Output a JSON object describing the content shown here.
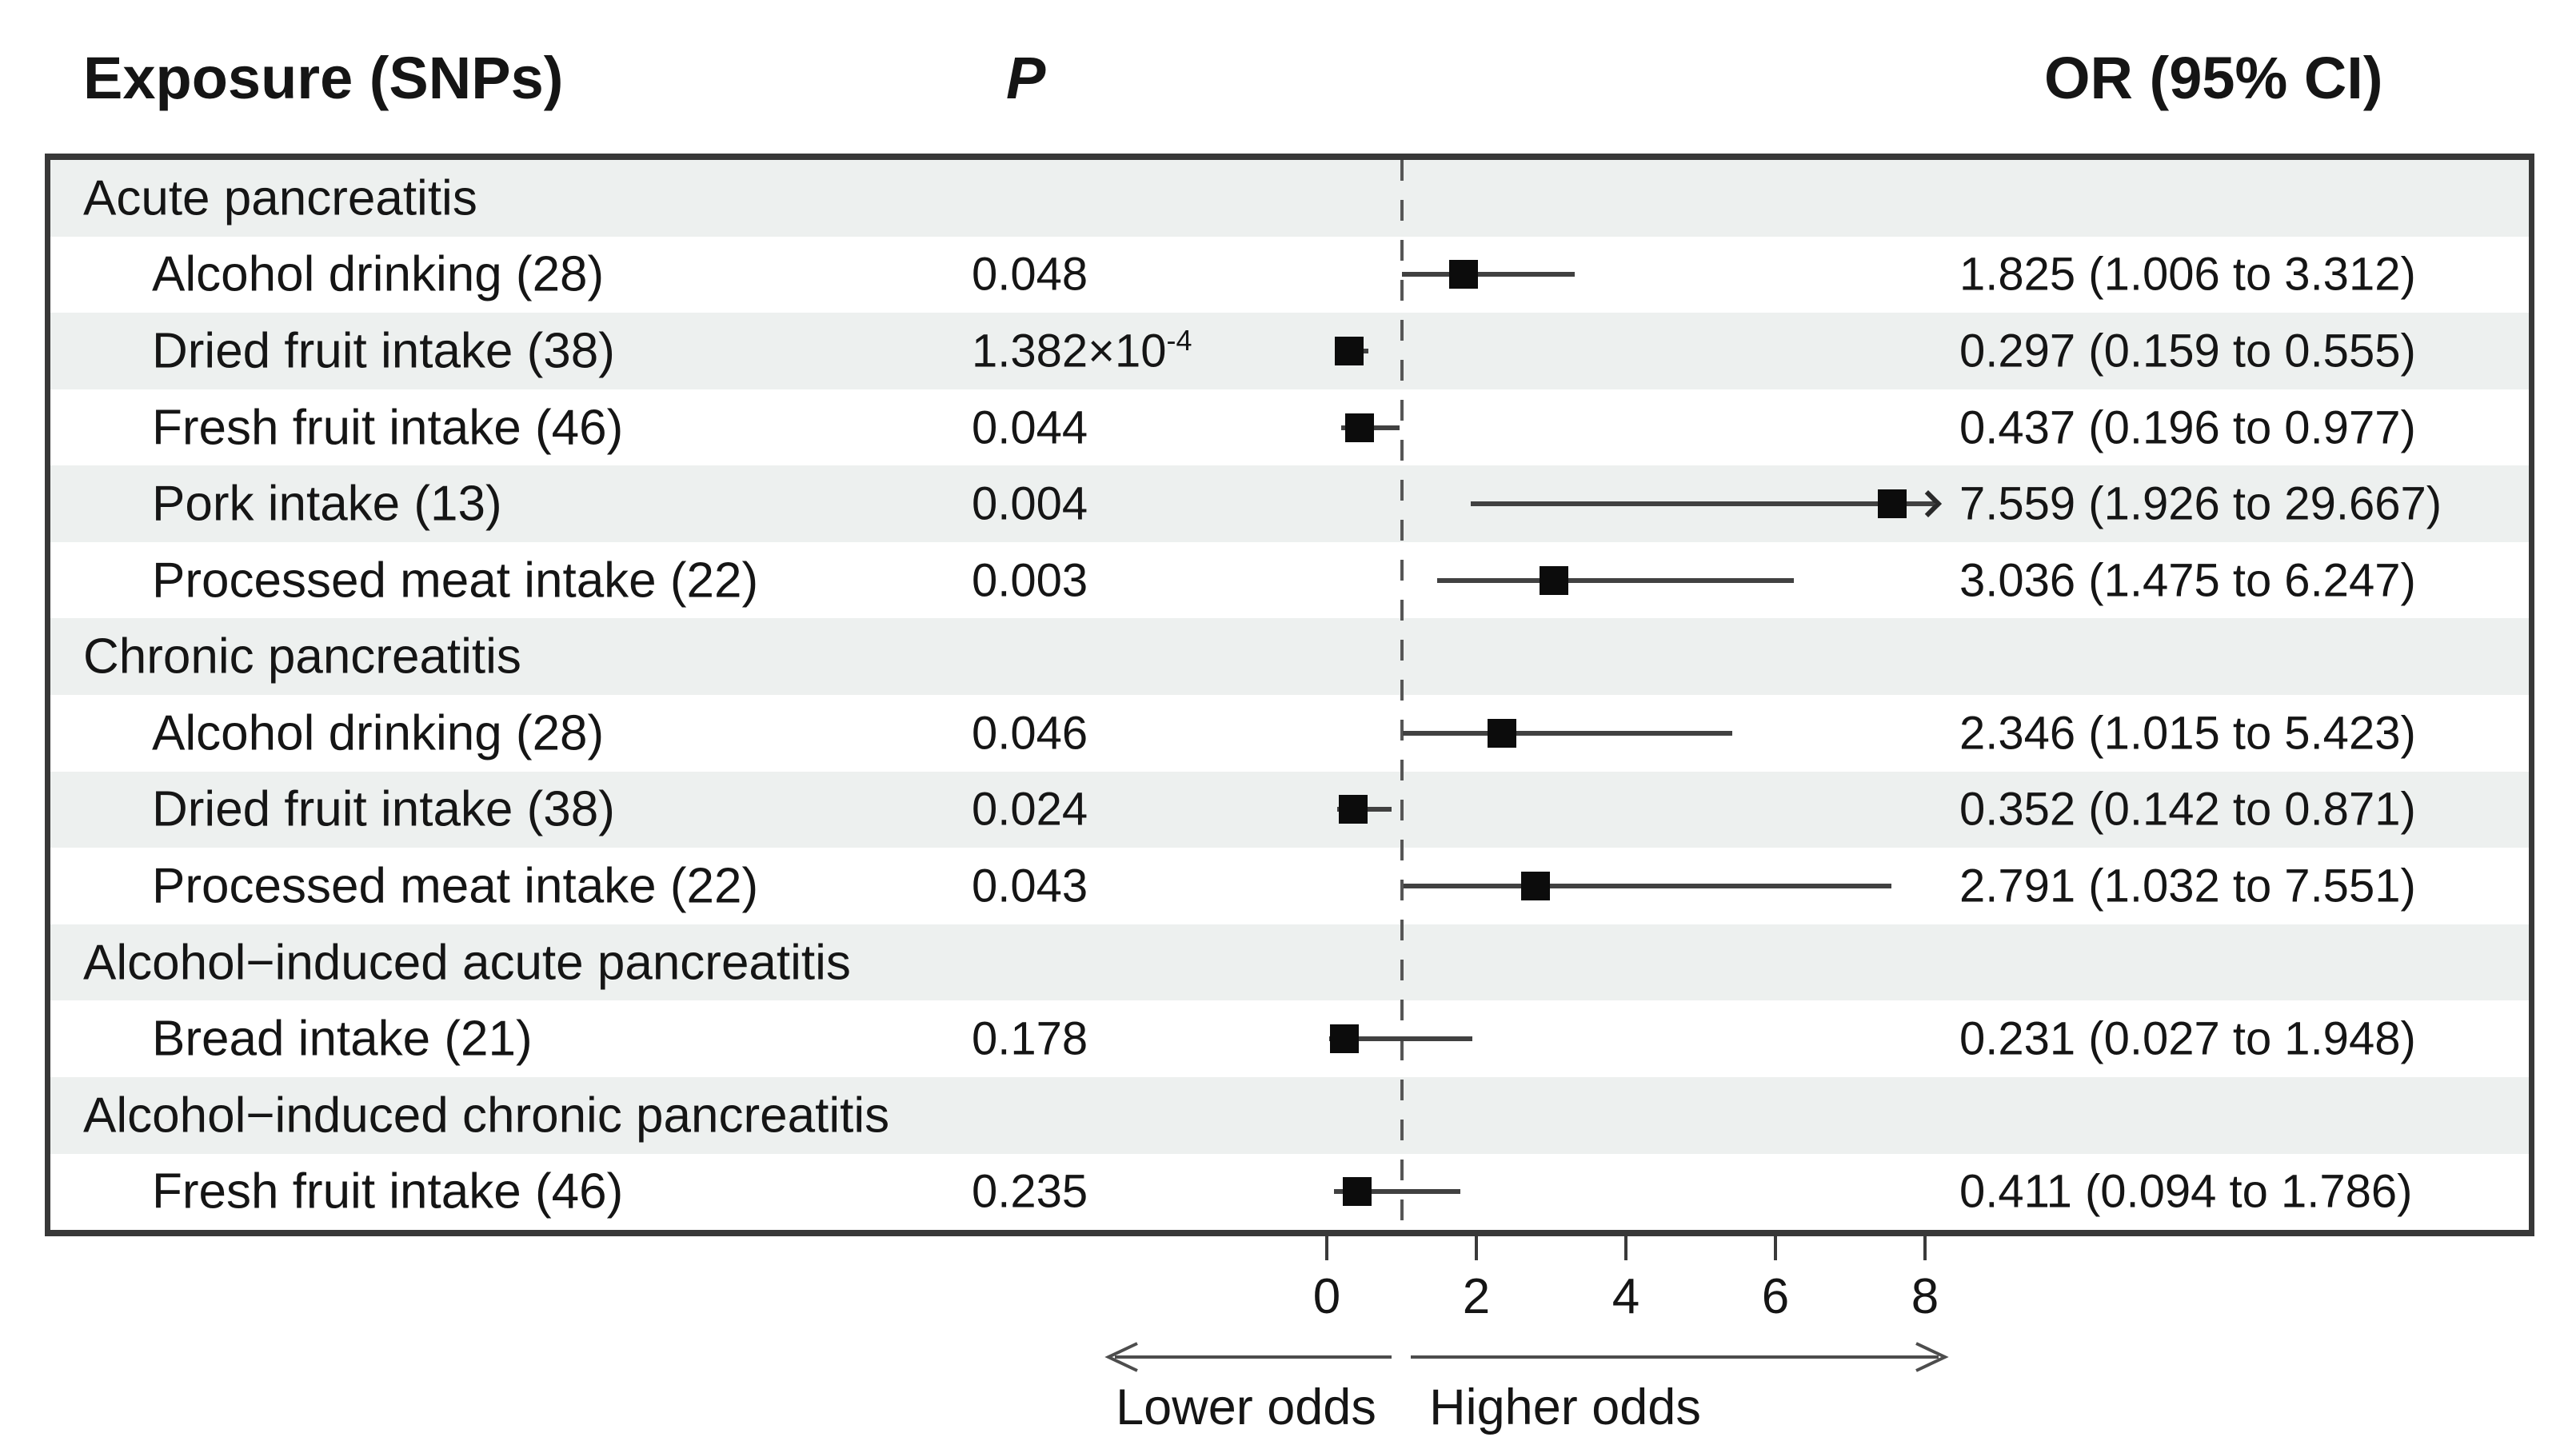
{
  "figure": {
    "headers": {
      "exposure": "Exposure (SNPs)",
      "p": "P",
      "or": "OR (95% CI)"
    },
    "axis": {
      "ticks": [
        "0",
        "2",
        "4",
        "6",
        "8"
      ],
      "lower_label": "Lower odds",
      "higher_label": "Higher odds"
    },
    "colors": {
      "stripe": "#edf0ef",
      "border": "#383838",
      "marker": "#0c0c0c",
      "ci_line": "#414141",
      "dashed_reference": "#565656"
    }
  },
  "table": {
    "rows": [
      {
        "type": "group",
        "label": "Acute pancreatitis"
      },
      {
        "type": "item",
        "label": "Alcohol drinking (28)",
        "p": "0.048",
        "or": "1.825 (1.006 to 3.312)",
        "est": 1.825,
        "lo": 1.006,
        "hi": 3.312
      },
      {
        "type": "item",
        "label": "Dried fruit intake (38)",
        "p": "1.382×10",
        "p_exp": "-4",
        "or": "0.297 (0.159 to 0.555)",
        "est": 0.297,
        "lo": 0.159,
        "hi": 0.555
      },
      {
        "type": "item",
        "label": "Fresh fruit intake (46)",
        "p": "0.044",
        "or": "0.437 (0.196 to 0.977)",
        "est": 0.437,
        "lo": 0.196,
        "hi": 0.977
      },
      {
        "type": "item",
        "label": "Pork intake (13)",
        "p": "0.004",
        "or": "7.559 (1.926 to 29.667)",
        "est": 7.559,
        "lo": 1.926,
        "hi": 29.667,
        "clipped": true
      },
      {
        "type": "item",
        "label": "Processed meat intake (22)",
        "p": "0.003",
        "or": "3.036 (1.475 to 6.247)",
        "est": 3.036,
        "lo": 1.475,
        "hi": 6.247
      },
      {
        "type": "group",
        "label": "Chronic pancreatitis"
      },
      {
        "type": "item",
        "label": "Alcohol drinking (28)",
        "p": "0.046",
        "or": "2.346 (1.015 to 5.423)",
        "est": 2.346,
        "lo": 1.015,
        "hi": 5.423
      },
      {
        "type": "item",
        "label": "Dried fruit intake (38)",
        "p": "0.024",
        "or": "0.352 (0.142 to 0.871)",
        "est": 0.352,
        "lo": 0.142,
        "hi": 0.871
      },
      {
        "type": "item",
        "label": "Processed meat intake (22)",
        "p": "0.043",
        "or": "2.791 (1.032 to 7.551)",
        "est": 2.791,
        "lo": 1.032,
        "hi": 7.551
      },
      {
        "type": "group",
        "label": "Alcohol−induced acute pancreatitis"
      },
      {
        "type": "item",
        "label": "Bread intake (21)",
        "p": "0.178",
        "or": "0.231 (0.027 to 1.948)",
        "est": 0.231,
        "lo": 0.027,
        "hi": 1.948
      },
      {
        "type": "group",
        "label": "Alcohol−induced chronic pancreatitis"
      },
      {
        "type": "item",
        "label": "Fresh fruit intake (46)",
        "p": "0.235",
        "or": "0.411 (0.094 to 1.786)",
        "est": 0.411,
        "lo": 0.094,
        "hi": 1.786
      }
    ]
  },
  "chart_data": {
    "type": "scatter",
    "variant": "forest-plot",
    "title": "",
    "xlabel": "",
    "ylabel": "",
    "x_ticks": [
      0,
      2,
      4,
      6,
      8
    ],
    "x_range": [
      0,
      8.3
    ],
    "reference_line_x": 1,
    "grid": false,
    "direction_labels": {
      "left": "Lower odds",
      "right": "Higher odds"
    },
    "columns": [
      "Exposure (SNPs)",
      "P",
      "OR (95% CI)"
    ],
    "groups": [
      {
        "group": "Acute pancreatitis",
        "rows": [
          {
            "exposure": "Alcohol drinking",
            "snps": 28,
            "p": 0.048,
            "or": 1.825,
            "ci_low": 1.006,
            "ci_high": 3.312
          },
          {
            "exposure": "Dried fruit intake",
            "snps": 38,
            "p": 0.0001382,
            "p_display": "1.382×10^-4",
            "or": 0.297,
            "ci_low": 0.159,
            "ci_high": 0.555
          },
          {
            "exposure": "Fresh fruit intake",
            "snps": 46,
            "p": 0.044,
            "or": 0.437,
            "ci_low": 0.196,
            "ci_high": 0.977
          },
          {
            "exposure": "Pork intake",
            "snps": 13,
            "p": 0.004,
            "or": 7.559,
            "ci_low": 1.926,
            "ci_high": 29.667,
            "ci_clipped_at_axis_max": true
          },
          {
            "exposure": "Processed meat intake",
            "snps": 22,
            "p": 0.003,
            "or": 3.036,
            "ci_low": 1.475,
            "ci_high": 6.247
          }
        ]
      },
      {
        "group": "Chronic pancreatitis",
        "rows": [
          {
            "exposure": "Alcohol drinking",
            "snps": 28,
            "p": 0.046,
            "or": 2.346,
            "ci_low": 1.015,
            "ci_high": 5.423
          },
          {
            "exposure": "Dried fruit intake",
            "snps": 38,
            "p": 0.024,
            "or": 0.352,
            "ci_low": 0.142,
            "ci_high": 0.871
          },
          {
            "exposure": "Processed meat intake",
            "snps": 22,
            "p": 0.043,
            "or": 2.791,
            "ci_low": 1.032,
            "ci_high": 7.551
          }
        ]
      },
      {
        "group": "Alcohol−induced acute pancreatitis",
        "rows": [
          {
            "exposure": "Bread intake",
            "snps": 21,
            "p": 0.178,
            "or": 0.231,
            "ci_low": 0.027,
            "ci_high": 1.948
          }
        ]
      },
      {
        "group": "Alcohol−induced chronic pancreatitis",
        "rows": [
          {
            "exposure": "Fresh fruit intake",
            "snps": 46,
            "p": 0.235,
            "or": 0.411,
            "ci_low": 0.094,
            "ci_high": 1.786
          }
        ]
      }
    ]
  }
}
